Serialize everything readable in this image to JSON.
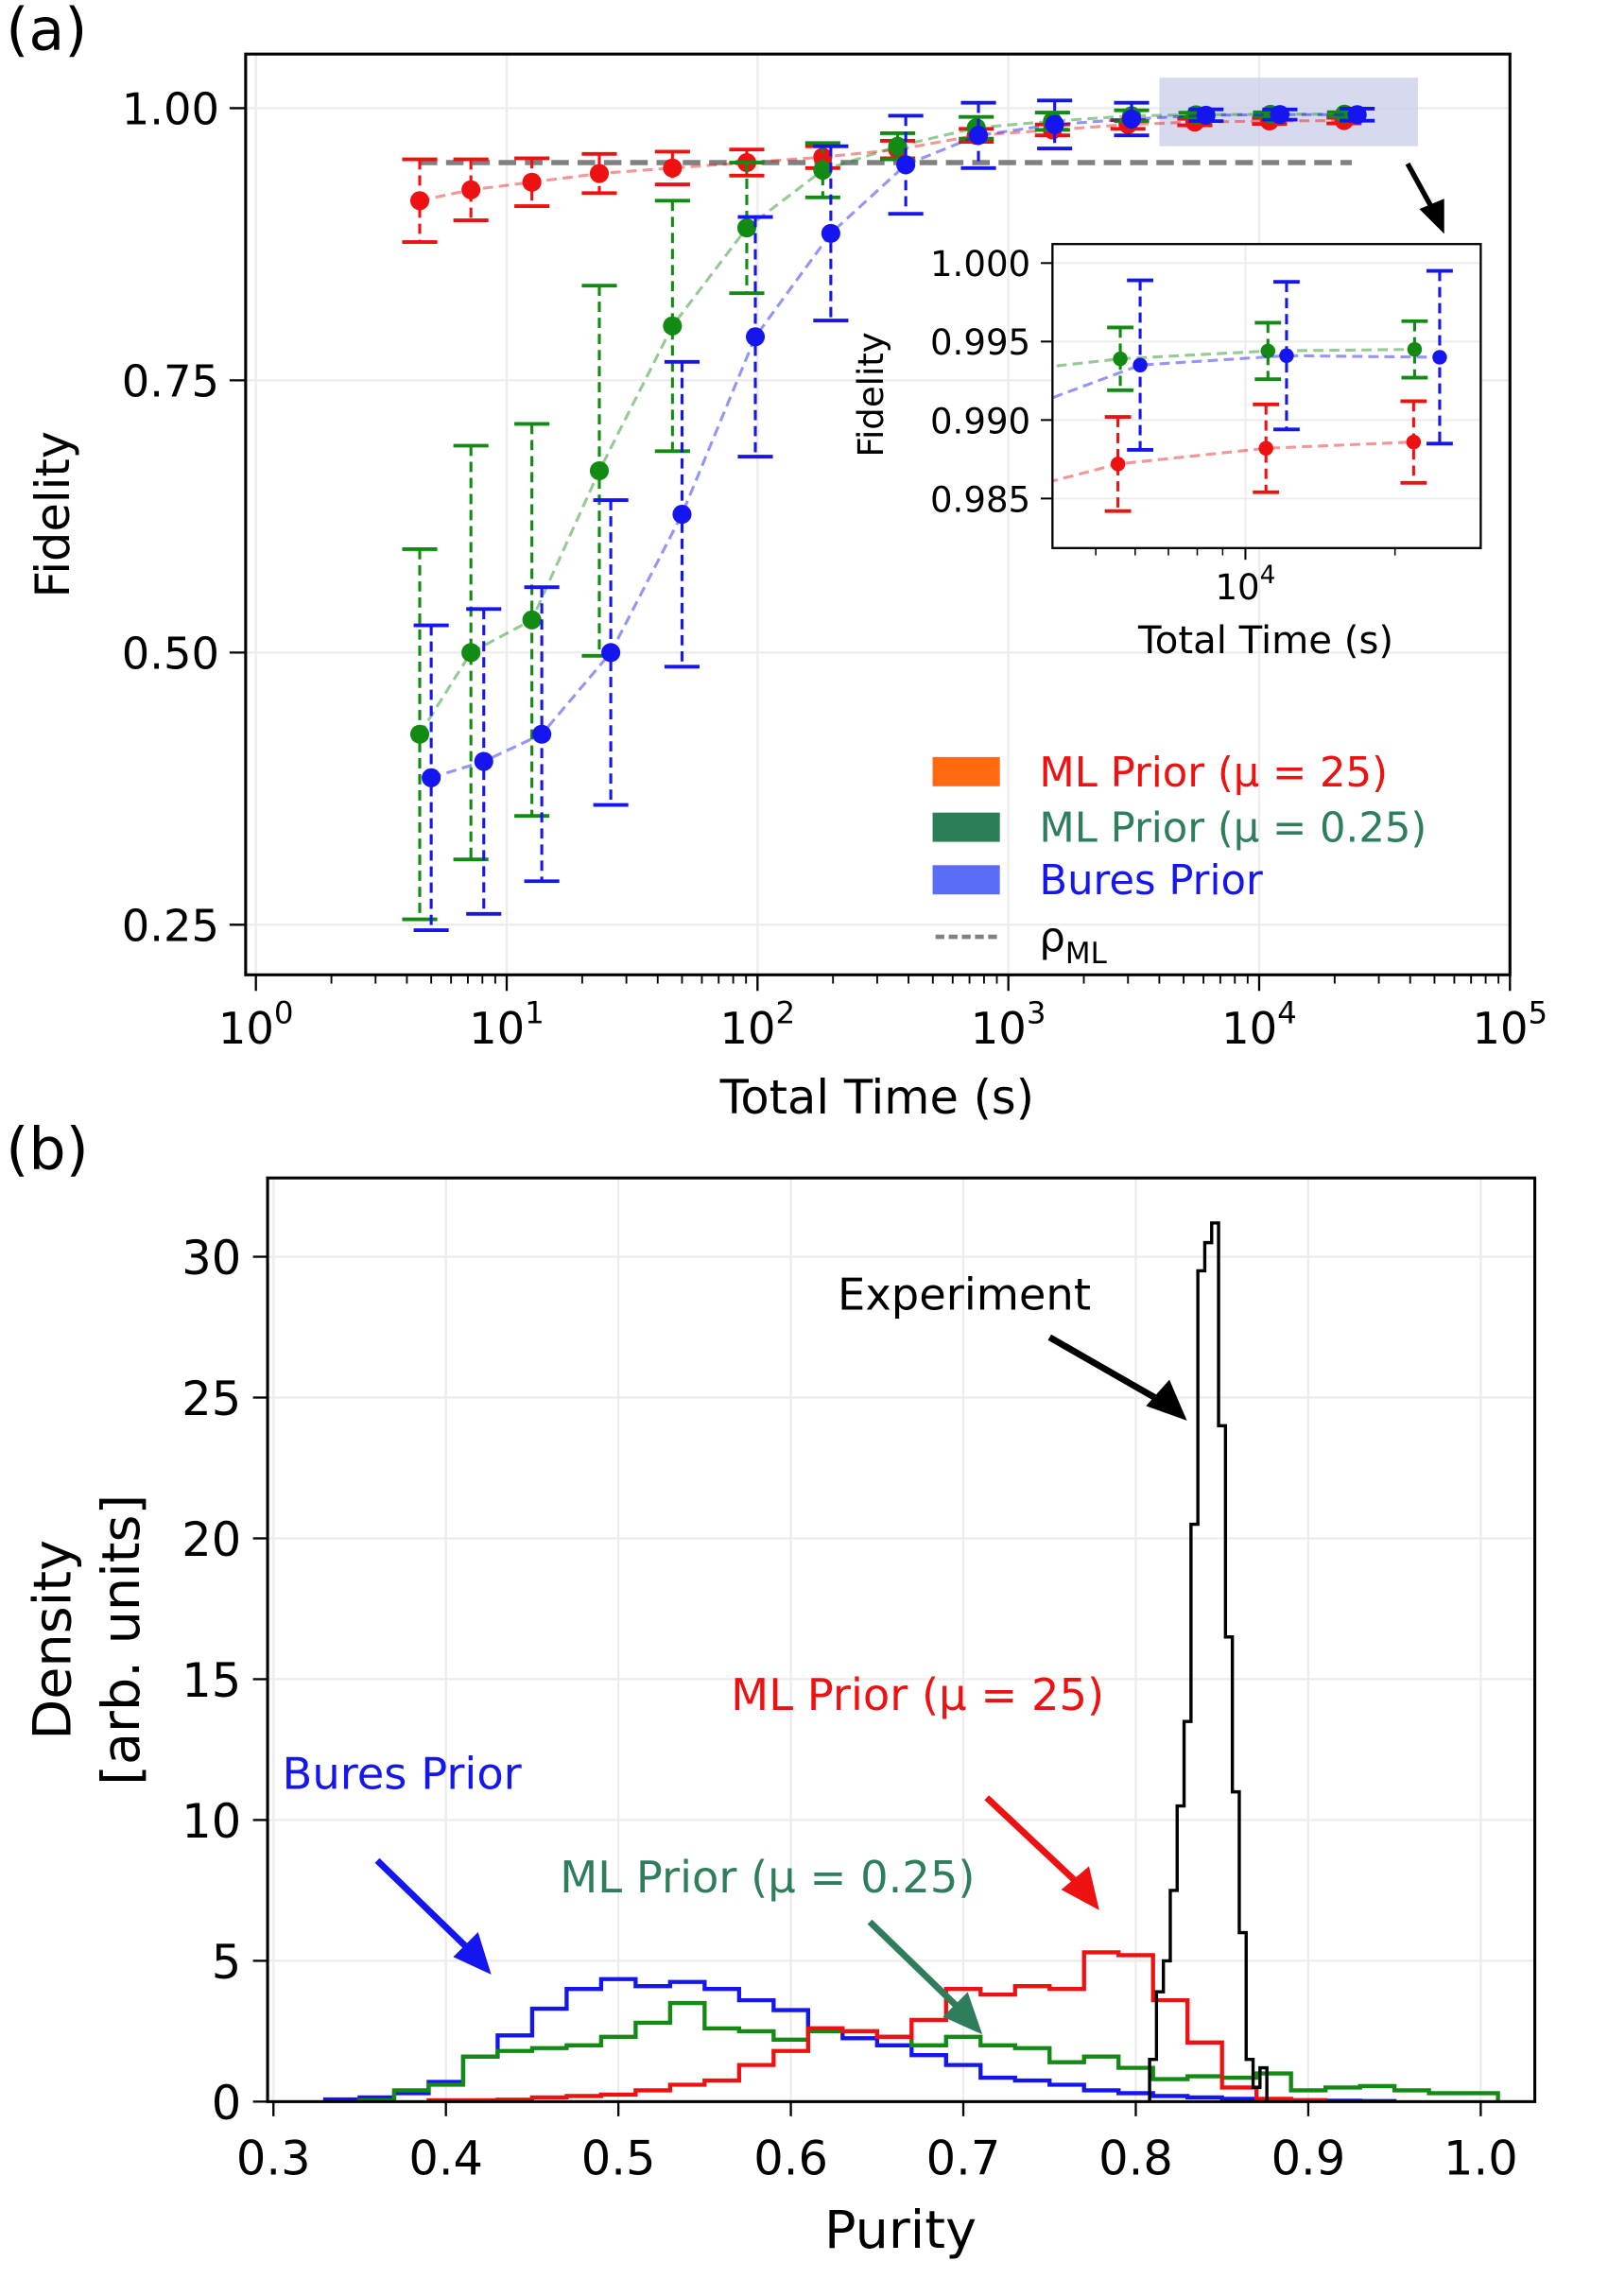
{
  "panel_labels": {
    "a": "(a)",
    "b": "(b)"
  },
  "colors": {
    "red": "#ee1111",
    "green": "#138a13",
    "blue": "#1515f0",
    "teal": "#2e7d5b",
    "orange": "#ff6a10",
    "legend_green": "#2a7f56",
    "legend_blue": "#5b6cf6",
    "gray": "#808080",
    "inset_region": "#c9cce8"
  },
  "chart_data": [
    {
      "type": "scatter",
      "panel": "a",
      "xlabel": "Total Time (s)",
      "ylabel": "Fidelity",
      "xscale": "log",
      "xlim": [
        0.95,
        100000
      ],
      "ylim": [
        0.204,
        1.05
      ],
      "grid": true,
      "xticks": [
        {
          "base": "10",
          "exp": "0"
        },
        {
          "base": "10",
          "exp": "1"
        },
        {
          "base": "10",
          "exp": "2"
        },
        {
          "base": "10",
          "exp": "3"
        },
        {
          "base": "10",
          "exp": "4"
        },
        {
          "base": "10",
          "exp": "5"
        }
      ],
      "yticks": [
        "0.25",
        "0.50",
        "0.75",
        "1.00"
      ],
      "legend_placement": "lower-right",
      "legend": [
        {
          "label": "ML Prior (μ = 25)",
          "patch": "orange",
          "text": "red"
        },
        {
          "label": "ML Prior (μ = 0.25)",
          "patch": "legend_green",
          "text": "teal"
        },
        {
          "label": "Bures Prior",
          "patch": "legend_blue",
          "text": "blue"
        },
        {
          "label": "ρ",
          "sub": "ML",
          "patch": "dashed-gray",
          "text": "black"
        }
      ],
      "reference_line": {
        "name": "ρML",
        "y": 0.95,
        "x_range": [
          4.5,
          23400
        ],
        "style": "dashed",
        "color": "gray"
      },
      "series": [
        {
          "name": "ML Prior (μ = 25)",
          "color": "red",
          "x": [
            4.5,
            7.2,
            12.6,
            23.4,
            45.8,
            90.6,
            182,
            362,
            745,
            1500,
            3000,
            5540,
            11000,
            21800
          ],
          "y": [
            0.915,
            0.925,
            0.932,
            0.94,
            0.945,
            0.95,
            0.955,
            0.962,
            0.975,
            0.98,
            0.985,
            0.9872,
            0.9882,
            0.9886
          ],
          "err": [
            0.038,
            0.028,
            0.022,
            0.018,
            0.015,
            0.012,
            0.01,
            0.008,
            0.006,
            0.005,
            0.004,
            0.003,
            0.0028,
            0.0026
          ]
        },
        {
          "name": "ML Prior (μ = 0.25)",
          "color": "green",
          "x": [
            4.5,
            7.2,
            12.6,
            23.4,
            45.8,
            90.6,
            182,
            362,
            745,
            1500,
            3100,
            5600,
            11100,
            21900
          ],
          "y": [
            0.425,
            0.5,
            0.53,
            0.667,
            0.8,
            0.89,
            0.943,
            0.965,
            0.982,
            0.988,
            0.993,
            0.9939,
            0.9944,
            0.9945
          ],
          "err": [
            0.17,
            0.19,
            0.18,
            0.17,
            0.115,
            0.06,
            0.025,
            0.012,
            0.01,
            0.008,
            0.005,
            0.002,
            0.0018,
            0.0018
          ]
        },
        {
          "name": "Bures Prior",
          "color": "blue",
          "x": [
            5.0,
            8.1,
            13.8,
            26,
            50,
            98,
            196,
            390,
            760,
            1530,
            3100,
            6140,
            12100,
            24600
          ],
          "y": [
            0.385,
            0.4,
            0.425,
            0.5,
            0.627,
            0.79,
            0.885,
            0.948,
            0.975,
            0.985,
            0.99,
            0.9935,
            0.9941,
            0.994
          ],
          "err": [
            0.14,
            0.14,
            0.135,
            0.14,
            0.14,
            0.11,
            0.08,
            0.045,
            0.03,
            0.022,
            0.015,
            0.0054,
            0.0047,
            0.0055
          ]
        }
      ],
      "zoom_region": {
        "x_range": [
          4000,
          43000
        ],
        "y_range": [
          0.965,
          1.028
        ]
      },
      "inset": {
        "xlabel": "Total Time (s)",
        "ylabel": "Fidelity",
        "xscale": "log",
        "xlim": [
          4070,
          29700
        ],
        "ylim": [
          0.9818,
          1.0012
        ],
        "xticks": [
          {
            "base": "10",
            "exp": "4"
          }
        ],
        "yticks": [
          "0.985",
          "0.990",
          "0.995",
          "1.000"
        ]
      }
    },
    {
      "type": "histogram",
      "panel": "b",
      "xlabel": "Purity",
      "ylabel": [
        "Density",
        "[arb. units]"
      ],
      "xlim": [
        0.2966,
        1.0314
      ],
      "ylim": [
        0,
        32.8
      ],
      "grid": true,
      "xticks": [
        "0.3",
        "0.4",
        "0.5",
        "0.6",
        "0.7",
        "0.8",
        "0.9",
        "1.0"
      ],
      "yticks": [
        "0",
        "5",
        "10",
        "15",
        "20",
        "25",
        "30"
      ],
      "series": [
        {
          "name": "Bures Prior",
          "color": "blue",
          "bin_start": 0.33,
          "bin_width": 0.02,
          "values": [
            0.08,
            0.15,
            0.3,
            0.7,
            1.6,
            2.35,
            3.3,
            4.0,
            4.35,
            4.1,
            4.25,
            4.0,
            3.6,
            3.25,
            2.6,
            2.25,
            2.0,
            1.65,
            1.3,
            0.85,
            0.75,
            0.6,
            0.4,
            0.3,
            0.2,
            0.15,
            0.1,
            0.08,
            0.05,
            0.03,
            0.02
          ]
        },
        {
          "name": "ML Prior (μ = 0.25)",
          "color": "green",
          "bin_start": 0.35,
          "bin_width": 0.02,
          "values": [
            0.05,
            0.4,
            0.6,
            1.6,
            1.8,
            1.9,
            2.0,
            2.3,
            2.8,
            3.5,
            2.6,
            2.5,
            2.2,
            2.5,
            2.5,
            2.3,
            2.0,
            2.3,
            2.0,
            1.9,
            1.4,
            1.6,
            1.2,
            0.8,
            0.9,
            0.85,
            1.0,
            0.4,
            0.5,
            0.55,
            0.4,
            0.3,
            0.3
          ]
        },
        {
          "name": "ML Prior (μ = 25)",
          "color": "red",
          "bin_start": 0.39,
          "bin_width": 0.02,
          "values": [
            0.05,
            0.05,
            0.07,
            0.15,
            0.2,
            0.25,
            0.4,
            0.6,
            0.75,
            1.3,
            1.8,
            2.6,
            2.5,
            2.3,
            2.9,
            4.0,
            3.8,
            4.1,
            4.0,
            5.3,
            5.2,
            3.6,
            2.1,
            0.5,
            0.1,
            0.05
          ]
        },
        {
          "name": "Experiment",
          "color": "black",
          "bin_start": 0.808,
          "bin_width": 0.004,
          "values": [
            1.5,
            3.9,
            5.0,
            7.5,
            10.5,
            13.5,
            20.5,
            29.5,
            30.5,
            31.2,
            24,
            16.5,
            11,
            6,
            1.5,
            0.5,
            1.2
          ]
        }
      ],
      "annotations": [
        {
          "text": "Experiment",
          "color": "black"
        },
        {
          "text": "ML Prior (μ = 25)",
          "color": "red"
        },
        {
          "text": "Bures Prior",
          "color": "blue"
        },
        {
          "text": "ML Prior (μ = 0.25)",
          "color": "teal"
        }
      ]
    }
  ]
}
